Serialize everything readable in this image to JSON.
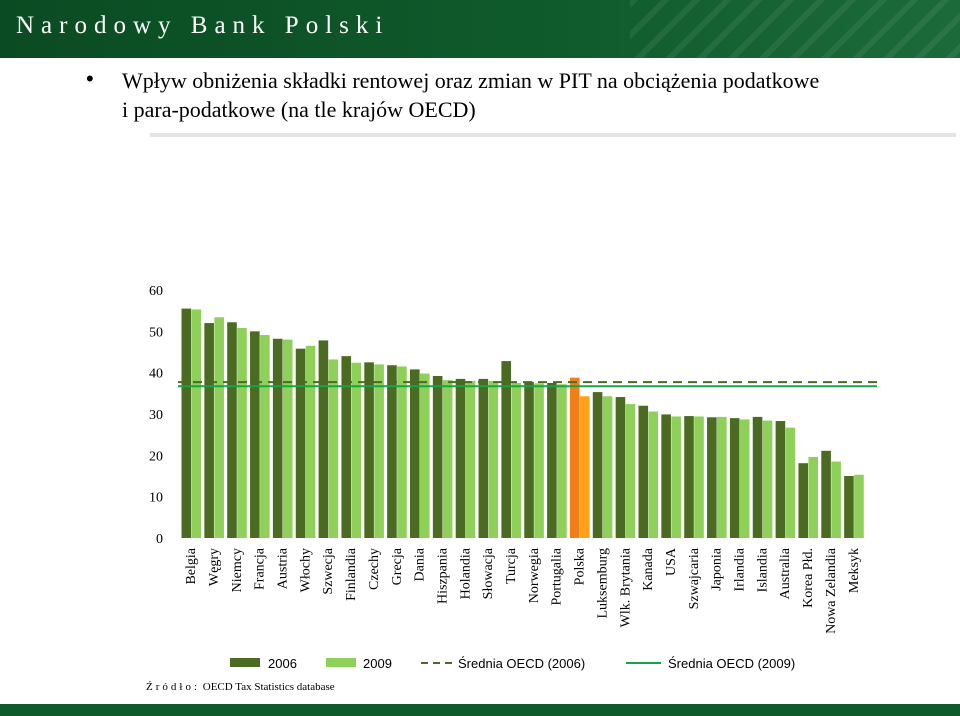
{
  "header": {
    "title": "Narodowy Bank Polski"
  },
  "slide": {
    "title_line1": "Wpływ obniżenia składki rentowej oraz zmian w PIT na obciążenia podatkowe",
    "title_line2": "i para-podatkowe (na tle krajów OECD)"
  },
  "source": {
    "prefix": "Źródło:",
    "text": "OECD Tax Statistics database"
  },
  "chart_data": {
    "type": "bar",
    "categories": [
      "Belgia",
      "Węgry",
      "Niemcy",
      "Francja",
      "Austria",
      "Włochy",
      "Szwecja",
      "Finlandia",
      "Czechy",
      "Grecja",
      "Dania",
      "Hiszpania",
      "Holandia",
      "Słowacja",
      "Turcja",
      "Norwegia",
      "Portugalia",
      "Polska",
      "Luksemburg",
      "Wlk. Brytania",
      "Kanada",
      "USA",
      "Szwajcaria",
      "Japonia",
      "Irlandia",
      "Islandia",
      "Australia",
      "Korea Płd.",
      "Nowa Zelandia",
      "Meksyk"
    ],
    "series": [
      {
        "name": "2006",
        "color": "#4b6b23",
        "values": [
          55.5,
          52.0,
          52.2,
          50.0,
          48.2,
          45.8,
          47.8,
          44.0,
          42.5,
          41.8,
          40.8,
          39.2,
          38.5,
          38.5,
          42.8,
          37.8,
          37.5,
          38.8,
          35.3,
          34.1,
          32.0,
          29.9,
          29.5,
          29.2,
          29.0,
          29.3,
          28.3,
          18.1,
          21.1,
          15.0
        ]
      },
      {
        "name": "2009",
        "color": "#8ed05a",
        "values": [
          55.3,
          53.4,
          50.8,
          49.1,
          48.0,
          46.5,
          43.2,
          42.4,
          42.0,
          41.5,
          39.8,
          38.2,
          38.0,
          38.0,
          37.5,
          37.4,
          37.2,
          34.3,
          34.3,
          32.4,
          30.6,
          29.4,
          29.4,
          29.3,
          28.7,
          28.4,
          26.7,
          19.6,
          18.5,
          15.3
        ]
      }
    ],
    "lines": [
      {
        "name": "Średnia OECD (2006)",
        "value": 37.7,
        "color": "#4b6b23",
        "style": "dashed"
      },
      {
        "name": "Średnia OECD (2009)",
        "value": 36.7,
        "color": "#16a34a",
        "style": "solid"
      }
    ],
    "highlight": {
      "category": "Polska",
      "color_2006": "#f07f1a",
      "color_2009": "#ffa21a"
    },
    "yticks": [
      0,
      10,
      20,
      30,
      40,
      50,
      60
    ],
    "ylim": [
      0,
      60
    ],
    "legend_position": "bottom",
    "grid": false
  }
}
